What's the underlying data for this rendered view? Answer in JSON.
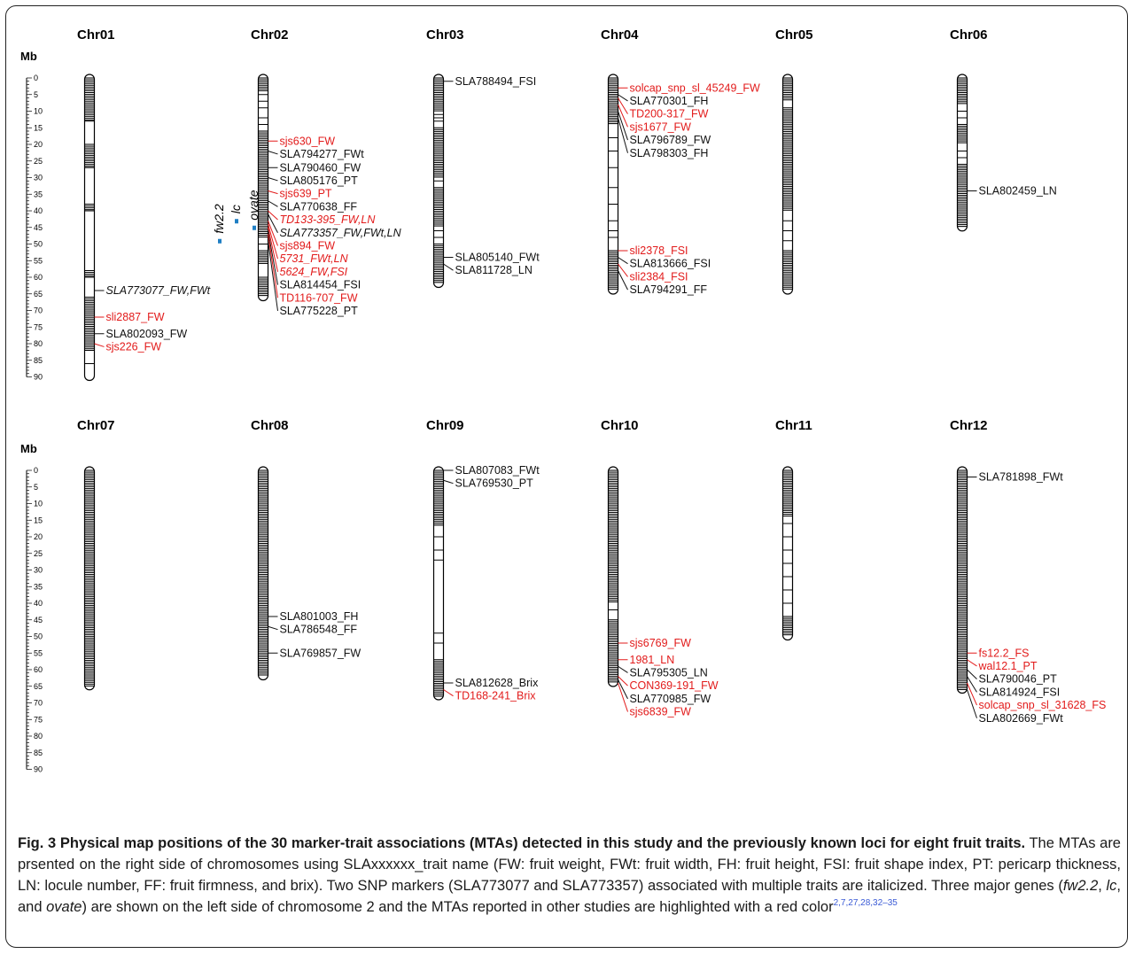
{
  "colors": {
    "reported": "#e21b1b",
    "normal": "#111111",
    "gene": "#1f7fc4"
  },
  "axis": {
    "unit": "Mb",
    "ticks": [
      0,
      5,
      10,
      15,
      20,
      25,
      30,
      35,
      40,
      45,
      50,
      55,
      60,
      65,
      70,
      75,
      80,
      85,
      90
    ]
  },
  "chromosomes": [
    {
      "name": "Chr01",
      "length": 90,
      "dense": [
        [
          0,
          13
        ],
        [
          20,
          27
        ],
        [
          38,
          40
        ],
        [
          58,
          60
        ],
        [
          66,
          82
        ]
      ],
      "sparse": [
        13,
        20,
        27,
        38,
        40,
        58,
        60,
        66,
        82,
        86
      ],
      "markers": [
        {
          "label": "SLA773077_FW,FWt",
          "pos": 64,
          "italic": true,
          "red": false
        },
        {
          "label": "sli2887_FW",
          "pos": 72,
          "italic": false,
          "red": true
        },
        {
          "label": "SLA802093_FW",
          "pos": 77,
          "italic": false,
          "red": false
        },
        {
          "label": "sjs226_FW",
          "pos": 80,
          "italic": false,
          "red": true
        }
      ]
    },
    {
      "name": "Chr02",
      "length": 66,
      "dense": [
        [
          0,
          4
        ],
        [
          16,
          48
        ],
        [
          52,
          56
        ],
        [
          60,
          66
        ]
      ],
      "sparse": [
        5,
        7,
        9,
        12,
        14,
        50
      ],
      "genes": [
        {
          "label": "fw2.2",
          "pos": 49
        },
        {
          "label": "lc",
          "pos": 43
        },
        {
          "label": "ovate",
          "pos": 45
        }
      ],
      "markers": [
        {
          "label": "sjs630_FW",
          "pos": 19,
          "italic": false,
          "red": true
        },
        {
          "label": "SLA794277_FWt",
          "pos": 22,
          "italic": false,
          "red": false
        },
        {
          "label": "SLA790460_FW",
          "pos": 27,
          "italic": false,
          "red": false
        },
        {
          "label": "SLA805176_PT",
          "pos": 30,
          "italic": false,
          "red": false
        },
        {
          "label": "sjs639_PT",
          "pos": 34,
          "italic": false,
          "red": true
        },
        {
          "label": "SLA770638_FF",
          "pos": 37,
          "italic": false,
          "red": false
        },
        {
          "label": "TD133-395_FW,LN",
          "pos": 40,
          "italic": true,
          "red": true
        },
        {
          "label": "SLA773357_FW,FWt,LN",
          "pos": 41,
          "italic": true,
          "red": false
        },
        {
          "label": "sjs894_FW",
          "pos": 43,
          "italic": false,
          "red": true
        },
        {
          "label": "5731_FWt,LN",
          "pos": 44,
          "italic": true,
          "red": true
        },
        {
          "label": "5624_FW,FSI",
          "pos": 45,
          "italic": true,
          "red": true
        },
        {
          "label": "SLA814454_FSI",
          "pos": 46,
          "italic": false,
          "red": false
        },
        {
          "label": "TD116-707_FW",
          "pos": 47,
          "italic": false,
          "red": true
        },
        {
          "label": "SLA775228_PT",
          "pos": 49,
          "italic": false,
          "red": false
        }
      ]
    },
    {
      "name": "Chr03",
      "length": 62,
      "dense": [
        [
          0,
          10
        ],
        [
          15,
          30
        ],
        [
          33,
          45
        ],
        [
          50,
          62
        ]
      ],
      "sparse": [
        11,
        12,
        13,
        31,
        46,
        48
      ],
      "markers": [
        {
          "label": "SLA788494_FSI",
          "pos": 1,
          "italic": false,
          "red": false
        },
        {
          "label": "SLA805140_FWt",
          "pos": 54,
          "italic": false,
          "red": false
        },
        {
          "label": "SLA811728_LN",
          "pos": 56,
          "italic": false,
          "red": false
        }
      ]
    },
    {
      "name": "Chr04",
      "length": 64,
      "dense": [
        [
          0,
          14
        ],
        [
          52,
          64
        ]
      ],
      "sparse": [
        18,
        22,
        27,
        33,
        38,
        43,
        46,
        48
      ],
      "markers": [
        {
          "label": "solcap_snp_sl_45249_FW",
          "pos": 3,
          "italic": false,
          "red": true
        },
        {
          "label": "SLA770301_FH",
          "pos": 5,
          "italic": false,
          "red": false
        },
        {
          "label": "TD200-317_FW",
          "pos": 6,
          "italic": false,
          "red": true
        },
        {
          "label": "sjs1677_FW",
          "pos": 8,
          "italic": false,
          "red": true
        },
        {
          "label": "SLA796789_FW",
          "pos": 10,
          "italic": false,
          "red": false
        },
        {
          "label": "SLA798303_FH",
          "pos": 12,
          "italic": false,
          "red": false
        },
        {
          "label": "sli2378_FSI",
          "pos": 52,
          "italic": false,
          "red": true
        },
        {
          "label": "SLA813666_FSI",
          "pos": 54,
          "italic": false,
          "red": false
        },
        {
          "label": "sli2384_FSI",
          "pos": 56,
          "italic": false,
          "red": true
        },
        {
          "label": "SLA794291_FF",
          "pos": 58,
          "italic": false,
          "red": false
        }
      ]
    },
    {
      "name": "Chr05",
      "length": 64,
      "dense": [
        [
          0,
          7
        ],
        [
          9,
          40
        ],
        [
          52,
          64
        ]
      ],
      "sparse": [
        43,
        46,
        49
      ],
      "markers": []
    },
    {
      "name": "Chr06",
      "length": 45,
      "dense": [
        [
          0,
          8
        ],
        [
          14,
          20
        ],
        [
          26,
          45
        ]
      ],
      "sparse": [
        10,
        12,
        22,
        24
      ],
      "markers": [
        {
          "label": "SLA802459_LN",
          "pos": 34,
          "italic": false,
          "red": false
        }
      ]
    },
    {
      "name": "Chr07",
      "length": 65,
      "dense": [
        [
          0,
          65
        ]
      ],
      "sparse": [],
      "markers": []
    },
    {
      "name": "Chr08",
      "length": 62,
      "dense": [
        [
          0,
          62
        ]
      ],
      "sparse": [],
      "markers": [
        {
          "label": "SLA801003_FH",
          "pos": 44,
          "italic": false,
          "red": false
        },
        {
          "label": "SLA786548_FF",
          "pos": 47,
          "italic": false,
          "red": false
        },
        {
          "label": "SLA769857_FW",
          "pos": 55,
          "italic": false,
          "red": false
        }
      ]
    },
    {
      "name": "Chr09",
      "length": 68,
      "dense": [
        [
          0,
          17
        ],
        [
          57,
          68
        ]
      ],
      "sparse": [
        20,
        24,
        27,
        49,
        52
      ],
      "markers": [
        {
          "label": "SLA807083_FWt",
          "pos": 0,
          "italic": false,
          "red": false
        },
        {
          "label": "SLA769530_PT",
          "pos": 3,
          "italic": false,
          "red": false
        },
        {
          "label": "SLA812628_Brix",
          "pos": 64,
          "italic": false,
          "red": false
        },
        {
          "label": "TD168-241_Brix",
          "pos": 66,
          "italic": false,
          "red": true
        }
      ]
    },
    {
      "name": "Chr10",
      "length": 64,
      "dense": [
        [
          0,
          40
        ],
        [
          45,
          64
        ]
      ],
      "sparse": [
        42
      ],
      "markers": [
        {
          "label": "sjs6769_FW",
          "pos": 52,
          "italic": false,
          "red": true
        },
        {
          "label": "1981_LN",
          "pos": 57,
          "italic": false,
          "red": true
        },
        {
          "label": "SLA795305_LN",
          "pos": 59,
          "italic": false,
          "red": false
        },
        {
          "label": "CON369-191_FW",
          "pos": 62,
          "italic": false,
          "red": true
        },
        {
          "label": "SLA770985_FW",
          "pos": 63,
          "italic": false,
          "red": false
        },
        {
          "label": "sjs6839_FW",
          "pos": 64,
          "italic": false,
          "red": true
        }
      ]
    },
    {
      "name": "Chr11",
      "length": 50,
      "dense": [
        [
          0,
          14
        ],
        [
          44,
          50
        ]
      ],
      "sparse": [
        16,
        20,
        24,
        28,
        32,
        36,
        40
      ],
      "markers": []
    },
    {
      "name": "Chr12",
      "length": 66,
      "dense": [
        [
          0,
          66
        ]
      ],
      "sparse": [],
      "markers": [
        {
          "label": "SLA781898_FWt",
          "pos": 2,
          "italic": false,
          "red": false
        },
        {
          "label": "fs12.2_FS",
          "pos": 55,
          "italic": false,
          "red": true
        },
        {
          "label": "wal12.1_PT",
          "pos": 57,
          "italic": false,
          "red": true
        },
        {
          "label": "SLA790046_PT",
          "pos": 60,
          "italic": false,
          "red": false
        },
        {
          "label": "SLA814924_FSI",
          "pos": 62,
          "italic": false,
          "red": false
        },
        {
          "label": "solcap_snp_sl_31628_FS",
          "pos": 64,
          "italic": false,
          "red": true
        },
        {
          "label": "SLA802669_FWt",
          "pos": 66,
          "italic": false,
          "red": false
        }
      ]
    }
  ],
  "caption": {
    "bold": "Fig. 3 Physical map positions of the 30 marker-trait associations (MTAs) detected in this study and the previously known loci for eight fruit traits.",
    "part1": " The MTAs are prsented on the right side of chromosomes using SLAxxxxxx_trait name (FW: fruit weight, FWt: fruit width, FH: fruit height, FSI: fruit shape index, PT: pericarp thickness, LN: locule number, FF: fruit firmness, and brix). Two SNP markers (SLA773077 and SLA773357) associated with multiple traits are italicized. Three major genes (",
    "g1": "fw2.2",
    "sep1": ", ",
    "g2": "lc",
    "sep2": ", and ",
    "g3": "ovate",
    "part2": ") are shown on the left side of chromosome 2 and the MTAs reported in other studies are highlighted with a red color",
    "refs": "2,7,27,28,32–35"
  }
}
